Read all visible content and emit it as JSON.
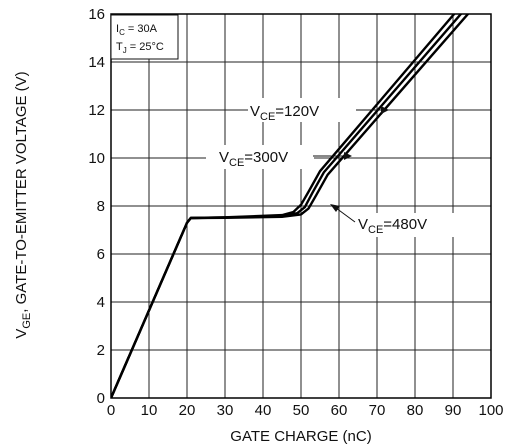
{
  "chart_data": {
    "type": "line",
    "title": "",
    "xlabel": "GATE  CHARGE (nC)",
    "ylabel": "V_GE, GATE-TO-EMITTER VOLTAGE (V)",
    "ylabel_parts": {
      "main": "V",
      "sub": "GE",
      "rest": ", GATE-TO-EMITTER VOLTAGE (V)"
    },
    "xlim": [
      0,
      100
    ],
    "ylim": [
      0,
      16
    ],
    "x_ticks": [
      0,
      10,
      20,
      30,
      40,
      50,
      60,
      70,
      80,
      90,
      100
    ],
    "y_ticks": [
      0,
      2,
      4,
      6,
      8,
      10,
      12,
      14,
      16
    ],
    "grid": true,
    "conditions": [
      {
        "main": "I",
        "sub": "C",
        "rest": " = 30A"
      },
      {
        "main": "T",
        "sub": "J",
        "rest": " = 25°C"
      }
    ],
    "series": [
      {
        "name": "V_CE=120V",
        "label_parts": {
          "main": "V",
          "sub": "CE",
          "rest": "=120V"
        },
        "x": [
          0,
          20,
          21,
          30,
          45,
          48,
          50,
          52,
          55,
          100
        ],
        "y": [
          0,
          7.3,
          7.5,
          7.53,
          7.62,
          7.75,
          8.05,
          8.6,
          9.45,
          17.8
        ]
      },
      {
        "name": "V_CE=300V",
        "label_parts": {
          "main": "V",
          "sub": "CE",
          "rest": "=300V"
        },
        "x": [
          0,
          20,
          21,
          30,
          45,
          49,
          51,
          53,
          56,
          100
        ],
        "y": [
          0,
          7.3,
          7.5,
          7.52,
          7.58,
          7.7,
          7.95,
          8.55,
          9.4,
          17.45
        ]
      },
      {
        "name": "V_CE=480V",
        "label_parts": {
          "main": "V",
          "sub": "CE",
          "rest": "=480V"
        },
        "x": [
          0,
          20,
          21,
          30,
          45,
          50,
          52,
          54,
          57,
          100
        ],
        "y": [
          0,
          7.3,
          7.5,
          7.51,
          7.55,
          7.65,
          7.9,
          8.45,
          9.3,
          17.1
        ]
      }
    ]
  }
}
